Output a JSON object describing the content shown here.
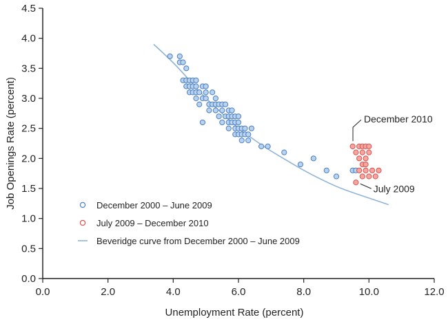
{
  "chart_data": {
    "type": "scatter",
    "xlabel": "Unemployment Rate (percent)",
    "ylabel": "Job Openings Rate (percent)",
    "xlim": [
      0,
      12
    ],
    "ylim": [
      0,
      4.5
    ],
    "xticks": [
      "0.0",
      "2.0",
      "4.0",
      "6.0",
      "8.0",
      "10.0",
      "12.0"
    ],
    "yticks": [
      "0.0",
      "0.5",
      "1.0",
      "1.5",
      "2.0",
      "2.5",
      "3.0",
      "3.5",
      "4.0",
      "4.5"
    ],
    "grid": false,
    "legend_position": "lower-left",
    "series": [
      {
        "name": "December 2000 – June 2009",
        "kind": "points",
        "color": "#4a7fc1",
        "fill": "#b9d3ee",
        "points": [
          [
            3.9,
            3.7
          ],
          [
            4.2,
            3.7
          ],
          [
            4.2,
            3.6
          ],
          [
            4.3,
            3.6
          ],
          [
            4.4,
            3.5
          ],
          [
            4.3,
            3.3
          ],
          [
            4.4,
            3.3
          ],
          [
            4.5,
            3.3
          ],
          [
            4.6,
            3.3
          ],
          [
            4.7,
            3.3
          ],
          [
            4.4,
            3.2
          ],
          [
            4.5,
            3.2
          ],
          [
            4.6,
            3.2
          ],
          [
            4.7,
            3.2
          ],
          [
            4.9,
            3.2
          ],
          [
            5.0,
            3.2
          ],
          [
            4.5,
            3.1
          ],
          [
            4.6,
            3.1
          ],
          [
            4.7,
            3.1
          ],
          [
            4.8,
            3.1
          ],
          [
            5.0,
            3.1
          ],
          [
            5.2,
            3.1
          ],
          [
            4.7,
            3.0
          ],
          [
            4.9,
            3.0
          ],
          [
            5.0,
            3.0
          ],
          [
            5.3,
            3.0
          ],
          [
            4.8,
            2.9
          ],
          [
            5.1,
            2.9
          ],
          [
            5.2,
            2.9
          ],
          [
            5.3,
            2.9
          ],
          [
            5.4,
            2.9
          ],
          [
            5.5,
            2.9
          ],
          [
            5.6,
            2.9
          ],
          [
            5.1,
            2.8
          ],
          [
            5.3,
            2.8
          ],
          [
            5.5,
            2.8
          ],
          [
            5.7,
            2.8
          ],
          [
            5.8,
            2.8
          ],
          [
            5.4,
            2.7
          ],
          [
            5.6,
            2.7
          ],
          [
            5.7,
            2.7
          ],
          [
            5.8,
            2.7
          ],
          [
            5.9,
            2.7
          ],
          [
            6.0,
            2.7
          ],
          [
            4.9,
            2.6
          ],
          [
            5.5,
            2.6
          ],
          [
            5.7,
            2.6
          ],
          [
            5.8,
            2.6
          ],
          [
            5.9,
            2.6
          ],
          [
            6.0,
            2.6
          ],
          [
            5.7,
            2.5
          ],
          [
            5.9,
            2.5
          ],
          [
            6.0,
            2.5
          ],
          [
            6.1,
            2.5
          ],
          [
            6.2,
            2.5
          ],
          [
            6.4,
            2.5
          ],
          [
            5.9,
            2.4
          ],
          [
            6.0,
            2.4
          ],
          [
            6.1,
            2.4
          ],
          [
            6.2,
            2.4
          ],
          [
            6.3,
            2.4
          ],
          [
            6.1,
            2.3
          ],
          [
            6.3,
            2.3
          ],
          [
            6.7,
            2.2
          ],
          [
            6.9,
            2.2
          ],
          [
            7.4,
            2.1
          ],
          [
            8.3,
            2.0
          ],
          [
            7.9,
            1.9
          ],
          [
            8.7,
            1.8
          ],
          [
            9.0,
            1.7
          ],
          [
            9.5,
            1.8
          ],
          [
            9.6,
            1.8
          ]
        ]
      },
      {
        "name": "July 2009 – December 2010",
        "kind": "points",
        "color": "#d9534f",
        "fill": "#f4a6a0",
        "points": [
          [
            9.6,
            1.6
          ],
          [
            9.5,
            2.2
          ],
          [
            9.7,
            2.2
          ],
          [
            9.8,
            2.2
          ],
          [
            9.9,
            2.2
          ],
          [
            10.0,
            2.2
          ],
          [
            9.6,
            2.1
          ],
          [
            9.8,
            2.1
          ],
          [
            10.0,
            2.1
          ],
          [
            9.7,
            2.0
          ],
          [
            9.9,
            2.0
          ],
          [
            9.8,
            1.9
          ],
          [
            9.9,
            1.9
          ],
          [
            9.7,
            1.8
          ],
          [
            9.9,
            1.8
          ],
          [
            10.1,
            1.8
          ],
          [
            10.3,
            1.8
          ],
          [
            9.8,
            1.7
          ],
          [
            10.0,
            1.7
          ],
          [
            10.2,
            1.7
          ]
        ]
      },
      {
        "name": "Beveridge curve from December 2000 – June 2009",
        "kind": "line",
        "color": "#8fb3d6",
        "points": [
          [
            3.4,
            3.9
          ],
          [
            4.0,
            3.6
          ],
          [
            4.5,
            3.3
          ],
          [
            5.0,
            3.0
          ],
          [
            5.5,
            2.75
          ],
          [
            6.0,
            2.5
          ],
          [
            6.5,
            2.3
          ],
          [
            7.0,
            2.12
          ],
          [
            7.5,
            1.96
          ],
          [
            8.0,
            1.8
          ],
          [
            8.5,
            1.66
          ],
          [
            9.0,
            1.53
          ],
          [
            9.5,
            1.43
          ],
          [
            10.0,
            1.34
          ],
          [
            10.6,
            1.23
          ]
        ]
      }
    ],
    "annotations": [
      {
        "text": "December 2010",
        "target": [
          9.55,
          2.22
        ]
      },
      {
        "text": "July 2009",
        "target": [
          9.65,
          1.6
        ]
      }
    ]
  }
}
